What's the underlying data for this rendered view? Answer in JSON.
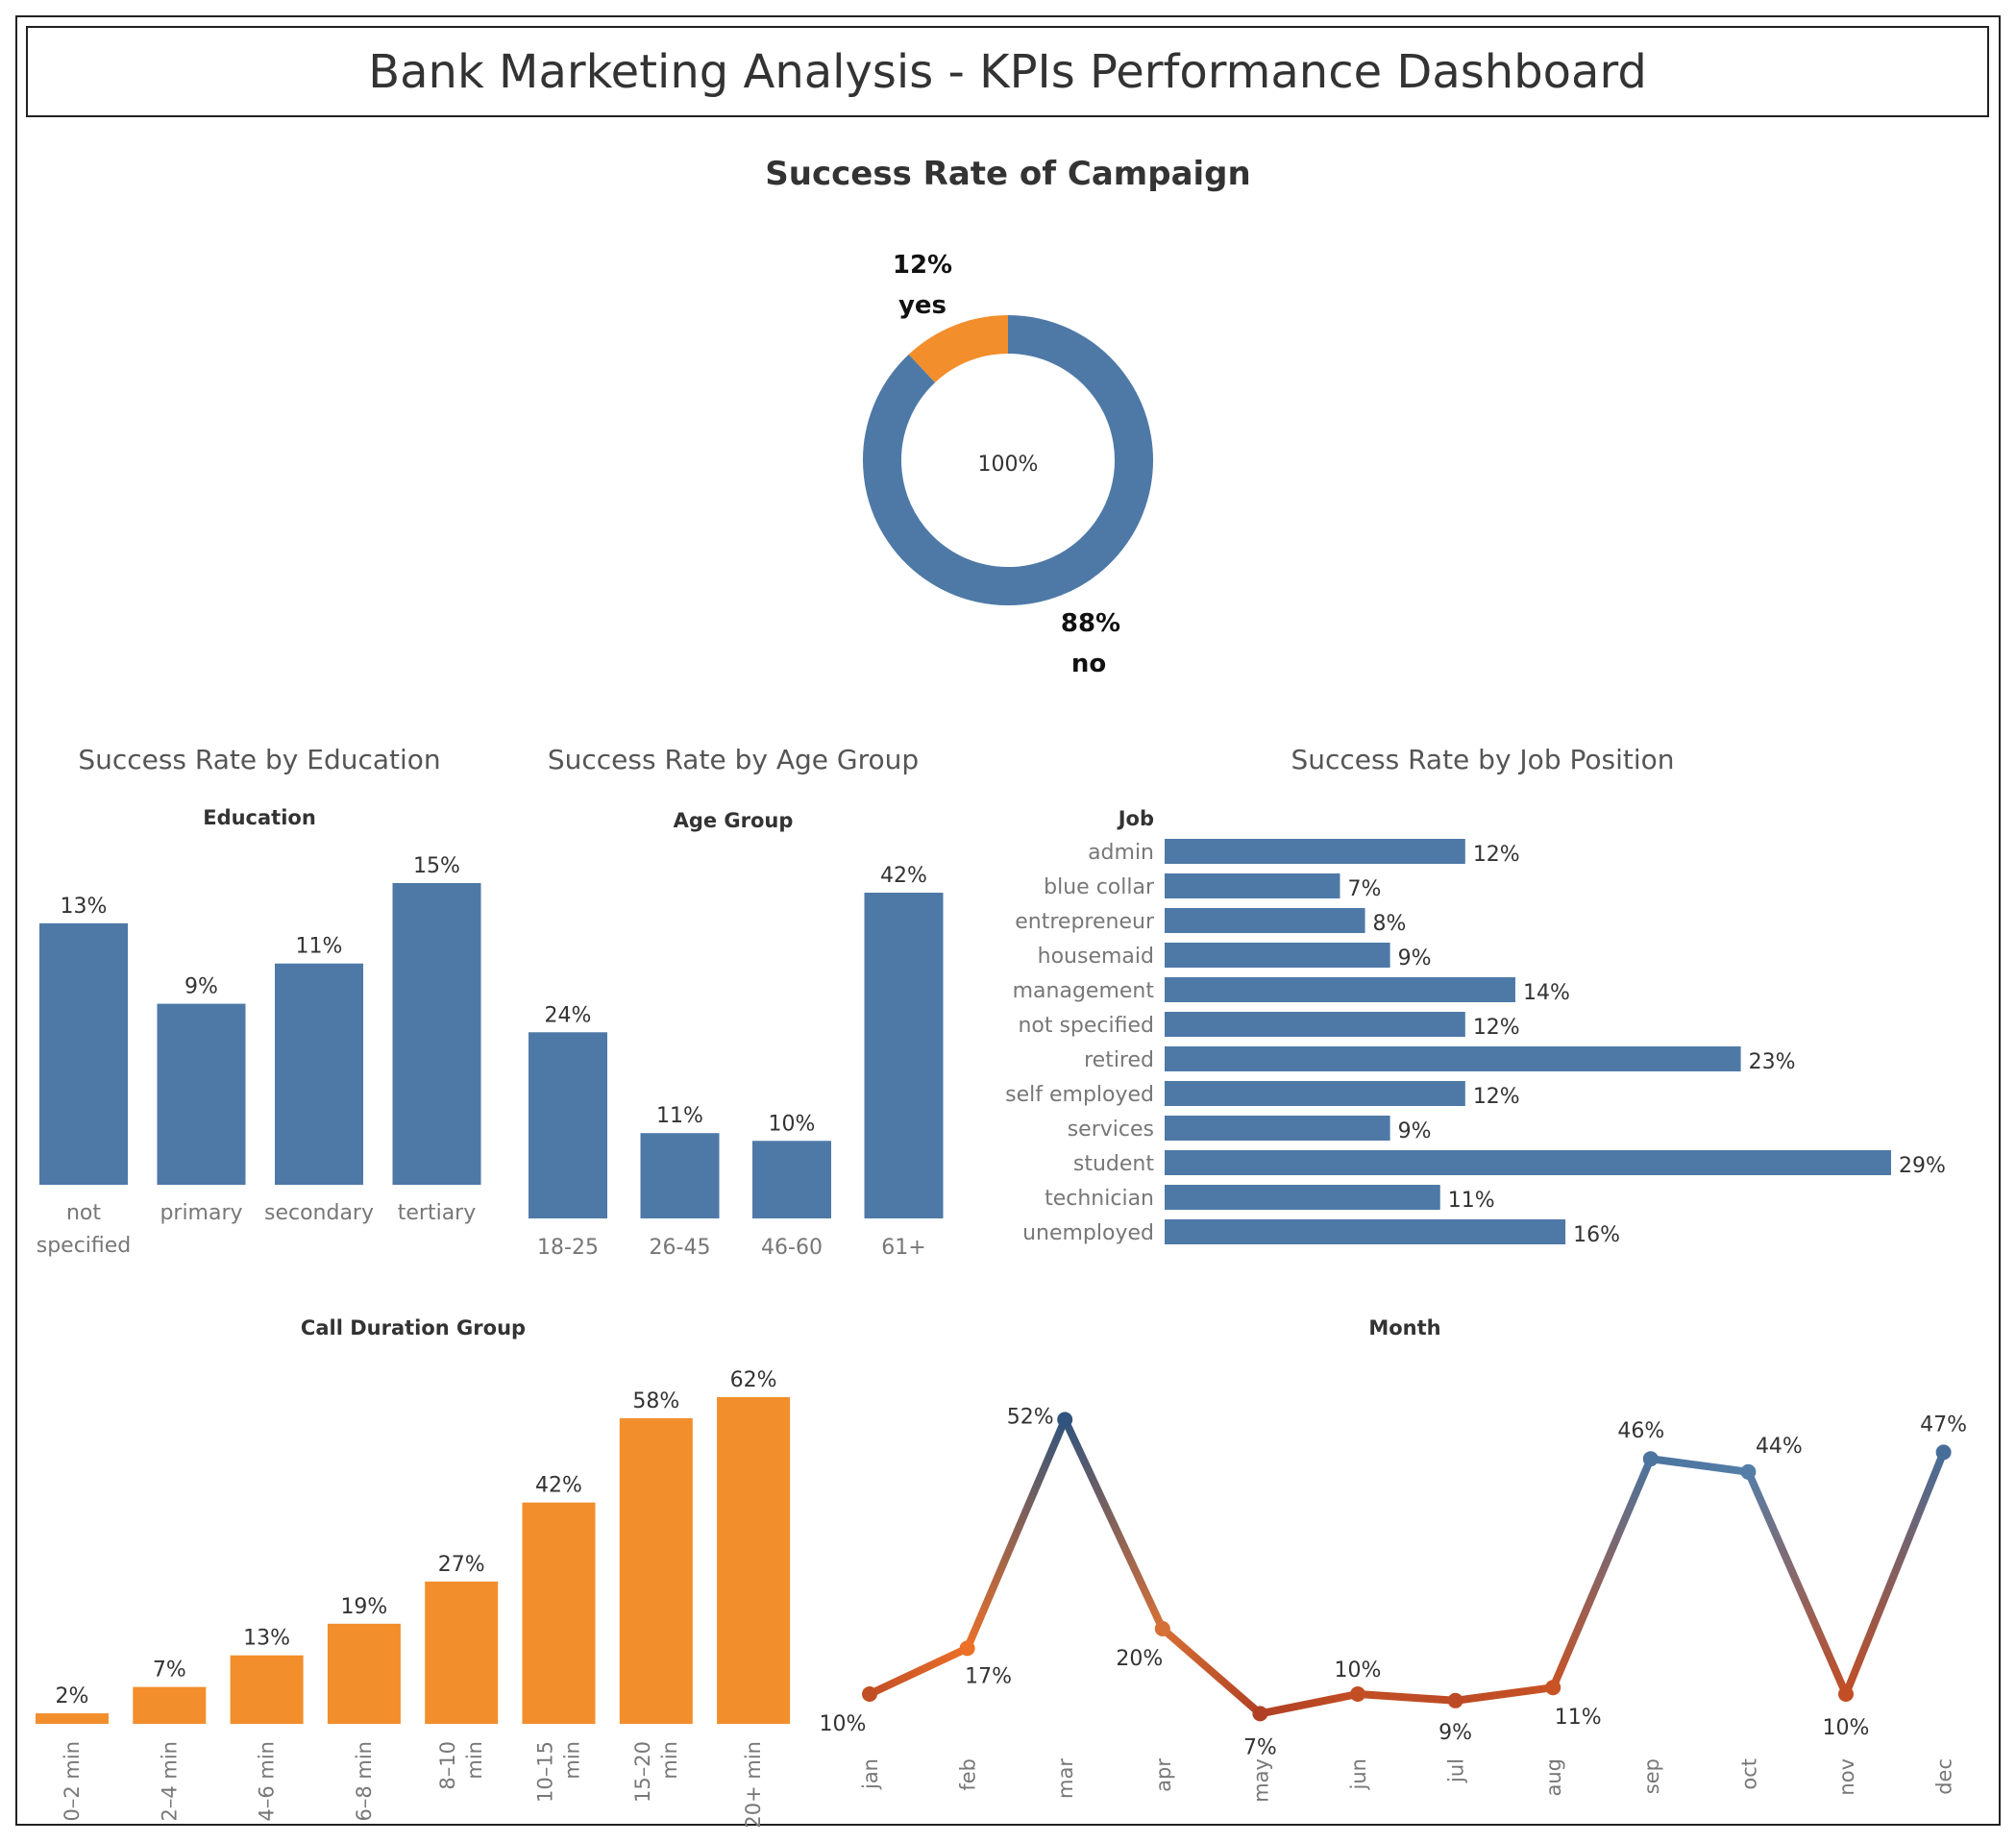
{
  "dashboard": {
    "title": "Bank Marketing Analysis - KPIs Performance Dashboard"
  },
  "colors": {
    "blue": "#4E79A7",
    "orange": "#F28E2B",
    "rust": "#B5442A",
    "axis_text": "#777777",
    "title_text": "#333333"
  },
  "chart_data": [
    {
      "id": "campaign",
      "type": "pie",
      "title": "Success Rate of Campaign",
      "center_label": "100%",
      "slices": [
        {
          "pct_label": "12%",
          "category": "yes",
          "value": 12,
          "color": "#F28E2B"
        },
        {
          "pct_label": "88%",
          "category": "no",
          "value": 88,
          "color": "#4E79A7"
        }
      ]
    },
    {
      "id": "education",
      "type": "bar",
      "title": "Success Rate by Education",
      "header": "Education",
      "categories": [
        [
          "not",
          "specified"
        ],
        [
          "primary"
        ],
        [
          "secondary"
        ],
        [
          "tertiary"
        ]
      ],
      "values": [
        13,
        9,
        11,
        15
      ],
      "labels": [
        "13%",
        "9%",
        "11%",
        "15%"
      ],
      "ylim": [
        0,
        15
      ]
    },
    {
      "id": "age",
      "type": "bar",
      "title": "Success Rate by Age Group",
      "header": "Age Group",
      "categories": [
        "18-25",
        "26-45",
        "46-60",
        "61+"
      ],
      "values": [
        24,
        11,
        10,
        42
      ],
      "labels": [
        "24%",
        "11%",
        "10%",
        "42%"
      ],
      "ylim": [
        0,
        42
      ]
    },
    {
      "id": "job",
      "type": "bar",
      "orientation": "horizontal",
      "title": "Success Rate by Job Position",
      "header": "Job",
      "categories": [
        "admin",
        "blue collar",
        "entrepreneur",
        "housemaid",
        "management",
        "not specified",
        "retired",
        "self employed",
        "services",
        "student",
        "technician",
        "unemployed"
      ],
      "values": [
        12,
        7,
        8,
        9,
        14,
        12,
        23,
        12,
        9,
        29,
        11,
        16
      ],
      "labels": [
        "12%",
        "7%",
        "8%",
        "9%",
        "14%",
        "12%",
        "23%",
        "12%",
        "9%",
        "29%",
        "11%",
        "16%"
      ],
      "xlim": [
        0,
        29
      ]
    },
    {
      "id": "duration",
      "type": "bar",
      "header": "Call Duration Group",
      "categories": [
        [
          "0–2 min"
        ],
        [
          "2–4 min"
        ],
        [
          "4–6 min"
        ],
        [
          "6–8 min"
        ],
        [
          "8–10",
          "min"
        ],
        [
          "10–15",
          "min"
        ],
        [
          "15–20",
          "min"
        ],
        [
          "20+ min"
        ]
      ],
      "values": [
        2,
        7,
        13,
        19,
        27,
        42,
        58,
        62
      ],
      "labels": [
        "2%",
        "7%",
        "13%",
        "19%",
        "27%",
        "42%",
        "58%",
        "62%"
      ],
      "ylim": [
        0,
        62
      ]
    },
    {
      "id": "month",
      "type": "line",
      "header": "Month",
      "x": [
        "jan",
        "feb",
        "mar",
        "apr",
        "may",
        "jun",
        "jul",
        "aug",
        "sep",
        "oct",
        "nov",
        "dec"
      ],
      "values": [
        10,
        17,
        52,
        20,
        7,
        10,
        9,
        11,
        46,
        44,
        10,
        47
      ],
      "labels": [
        "10%",
        "17%",
        "52%",
        "20%",
        "7%",
        "10%",
        "9%",
        "11%",
        "46%",
        "44%",
        "10%",
        "47%"
      ],
      "color_scale": "diverging orange-blue"
    }
  ]
}
